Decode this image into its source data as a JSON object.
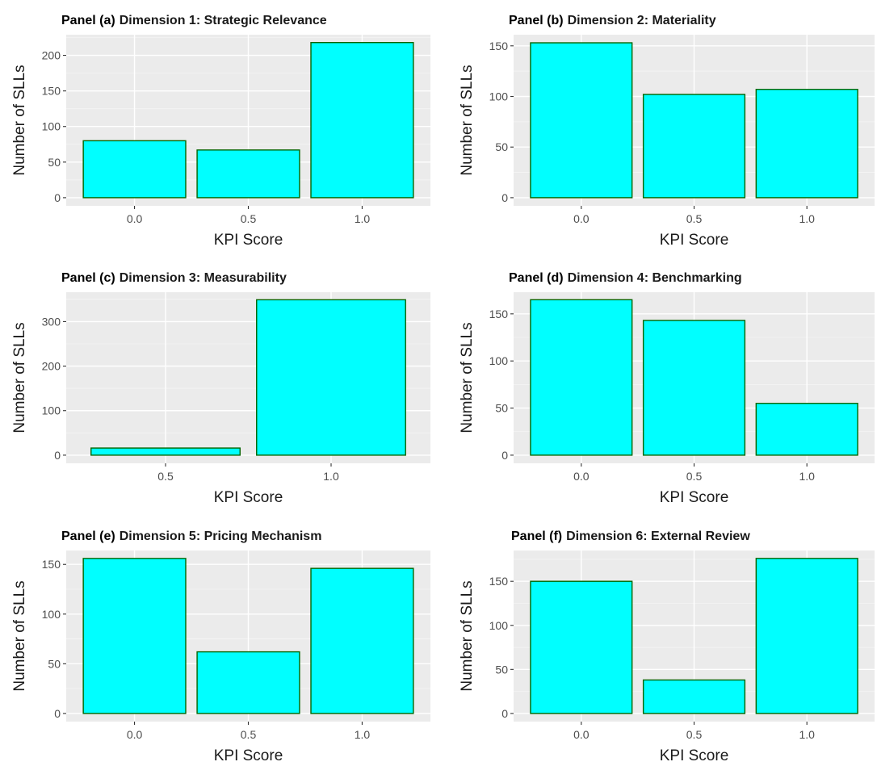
{
  "style": {
    "panel_background": "#ebebeb",
    "grid_major": "#ffffff",
    "grid_minor": "#f5f5f5",
    "bar_fill": "#00ffff",
    "bar_outline": "#006400",
    "tick_color": "#333333"
  },
  "chart_data": [
    {
      "type": "bar",
      "title_prefix": "Panel (a)",
      "title": "Dimension 1: Strategic Relevance",
      "xlabel": "KPI Score",
      "ylabel": "Number of SLLs",
      "categories": [
        "0.0",
        "0.5",
        "1.0"
      ],
      "values": [
        80,
        67,
        218
      ],
      "ylim": [
        0,
        229
      ],
      "yticks": [
        0,
        50,
        100,
        150,
        200
      ],
      "grid": true
    },
    {
      "type": "bar",
      "title_prefix": "Panel (b)",
      "title": "Dimension 2: Materiality",
      "xlabel": "KPI Score",
      "ylabel": "Number of SLLs",
      "categories": [
        "0.0",
        "0.5",
        "1.0"
      ],
      "values": [
        153,
        102,
        107
      ],
      "ylim": [
        0,
        161
      ],
      "yticks": [
        0,
        50,
        100,
        150
      ],
      "grid": true
    },
    {
      "type": "bar",
      "title_prefix": "Panel (c)",
      "title": "Dimension 3: Measurability",
      "xlabel": "KPI Score",
      "ylabel": "Number of SLLs",
      "categories": [
        "0.5",
        "1.0"
      ],
      "values": [
        16,
        349
      ],
      "ylim": [
        0,
        366
      ],
      "yticks": [
        0,
        100,
        200,
        300
      ],
      "grid": true
    },
    {
      "type": "bar",
      "title_prefix": "Panel (d)",
      "title": "Dimension 4: Benchmarking",
      "xlabel": "KPI Score",
      "ylabel": "Number of SLLs",
      "categories": [
        "0.0",
        "0.5",
        "1.0"
      ],
      "values": [
        165,
        143,
        55
      ],
      "ylim": [
        0,
        173
      ],
      "yticks": [
        0,
        50,
        100,
        150
      ],
      "grid": true
    },
    {
      "type": "bar",
      "title_prefix": "Panel (e)",
      "title": "Dimension 5: Pricing Mechanism",
      "xlabel": "KPI Score",
      "ylabel": "Number of SLLs",
      "categories": [
        "0.0",
        "0.5",
        "1.0"
      ],
      "values": [
        156,
        62,
        146
      ],
      "ylim": [
        0,
        164
      ],
      "yticks": [
        0,
        50,
        100,
        150
      ],
      "grid": true
    },
    {
      "type": "bar",
      "title_prefix": "Panel (f)",
      "title": "Dimension 6: External Review",
      "xlabel": "KPI Score",
      "ylabel": "Number of SLLs",
      "categories": [
        "0.0",
        "0.5",
        "1.0"
      ],
      "values": [
        150,
        38,
        176
      ],
      "ylim": [
        0,
        185
      ],
      "yticks": [
        0,
        50,
        100,
        150
      ],
      "grid": true
    }
  ]
}
